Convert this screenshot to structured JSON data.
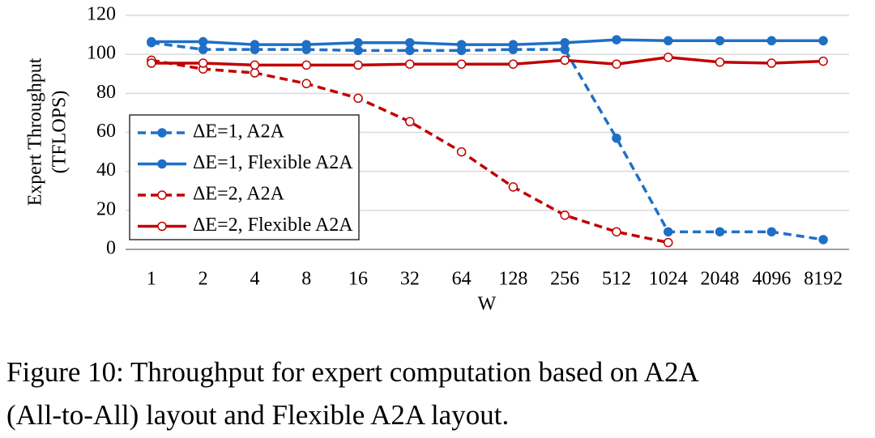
{
  "chart_data": {
    "type": "line",
    "x_label": "W",
    "y_label": [
      "Expert Throughput",
      "(TFLOPS)"
    ],
    "categories": [
      "1",
      "2",
      "4",
      "8",
      "16",
      "32",
      "64",
      "128",
      "256",
      "512",
      "1024",
      "2048",
      "4096",
      "8192"
    ],
    "series": [
      {
        "name": "ΔE=1, A2A",
        "color": "#1f6fc5",
        "dashed": true,
        "marker": "filled",
        "values": [
          106,
          102.5,
          102.5,
          102.5,
          102,
          102,
          102,
          102.5,
          102.5,
          57,
          9,
          9,
          9,
          5
        ]
      },
      {
        "name": "ΔE=1, Flexible A2A",
        "color": "#1f6fc5",
        "dashed": false,
        "marker": "filled",
        "values": [
          106.5,
          106.5,
          105,
          105,
          106,
          106,
          105,
          105,
          106,
          107.5,
          107,
          107,
          107,
          107
        ]
      },
      {
        "name": "ΔE=2, A2A",
        "color": "#c00000",
        "dashed": true,
        "marker": "open",
        "values": [
          97,
          92.5,
          90.5,
          85,
          77.5,
          65.5,
          50,
          32,
          17.5,
          9,
          3.5,
          null,
          null,
          null
        ]
      },
      {
        "name": "ΔE=2, Flexible A2A",
        "color": "#c00000",
        "dashed": false,
        "marker": "open",
        "values": [
          95.5,
          95.5,
          94.5,
          94.5,
          94.5,
          95,
          95,
          95,
          97,
          95,
          98.5,
          96,
          95.5,
          96.5
        ]
      }
    ],
    "ylim": [
      0,
      120
    ],
    "yticks": [
      0,
      20,
      40,
      60,
      80,
      100,
      120
    ],
    "grid": true,
    "legend": "left"
  },
  "caption": [
    "Figure 10: Throughput for expert computation based on A2A",
    "(All-to-All) layout and Flexible A2A layout."
  ]
}
